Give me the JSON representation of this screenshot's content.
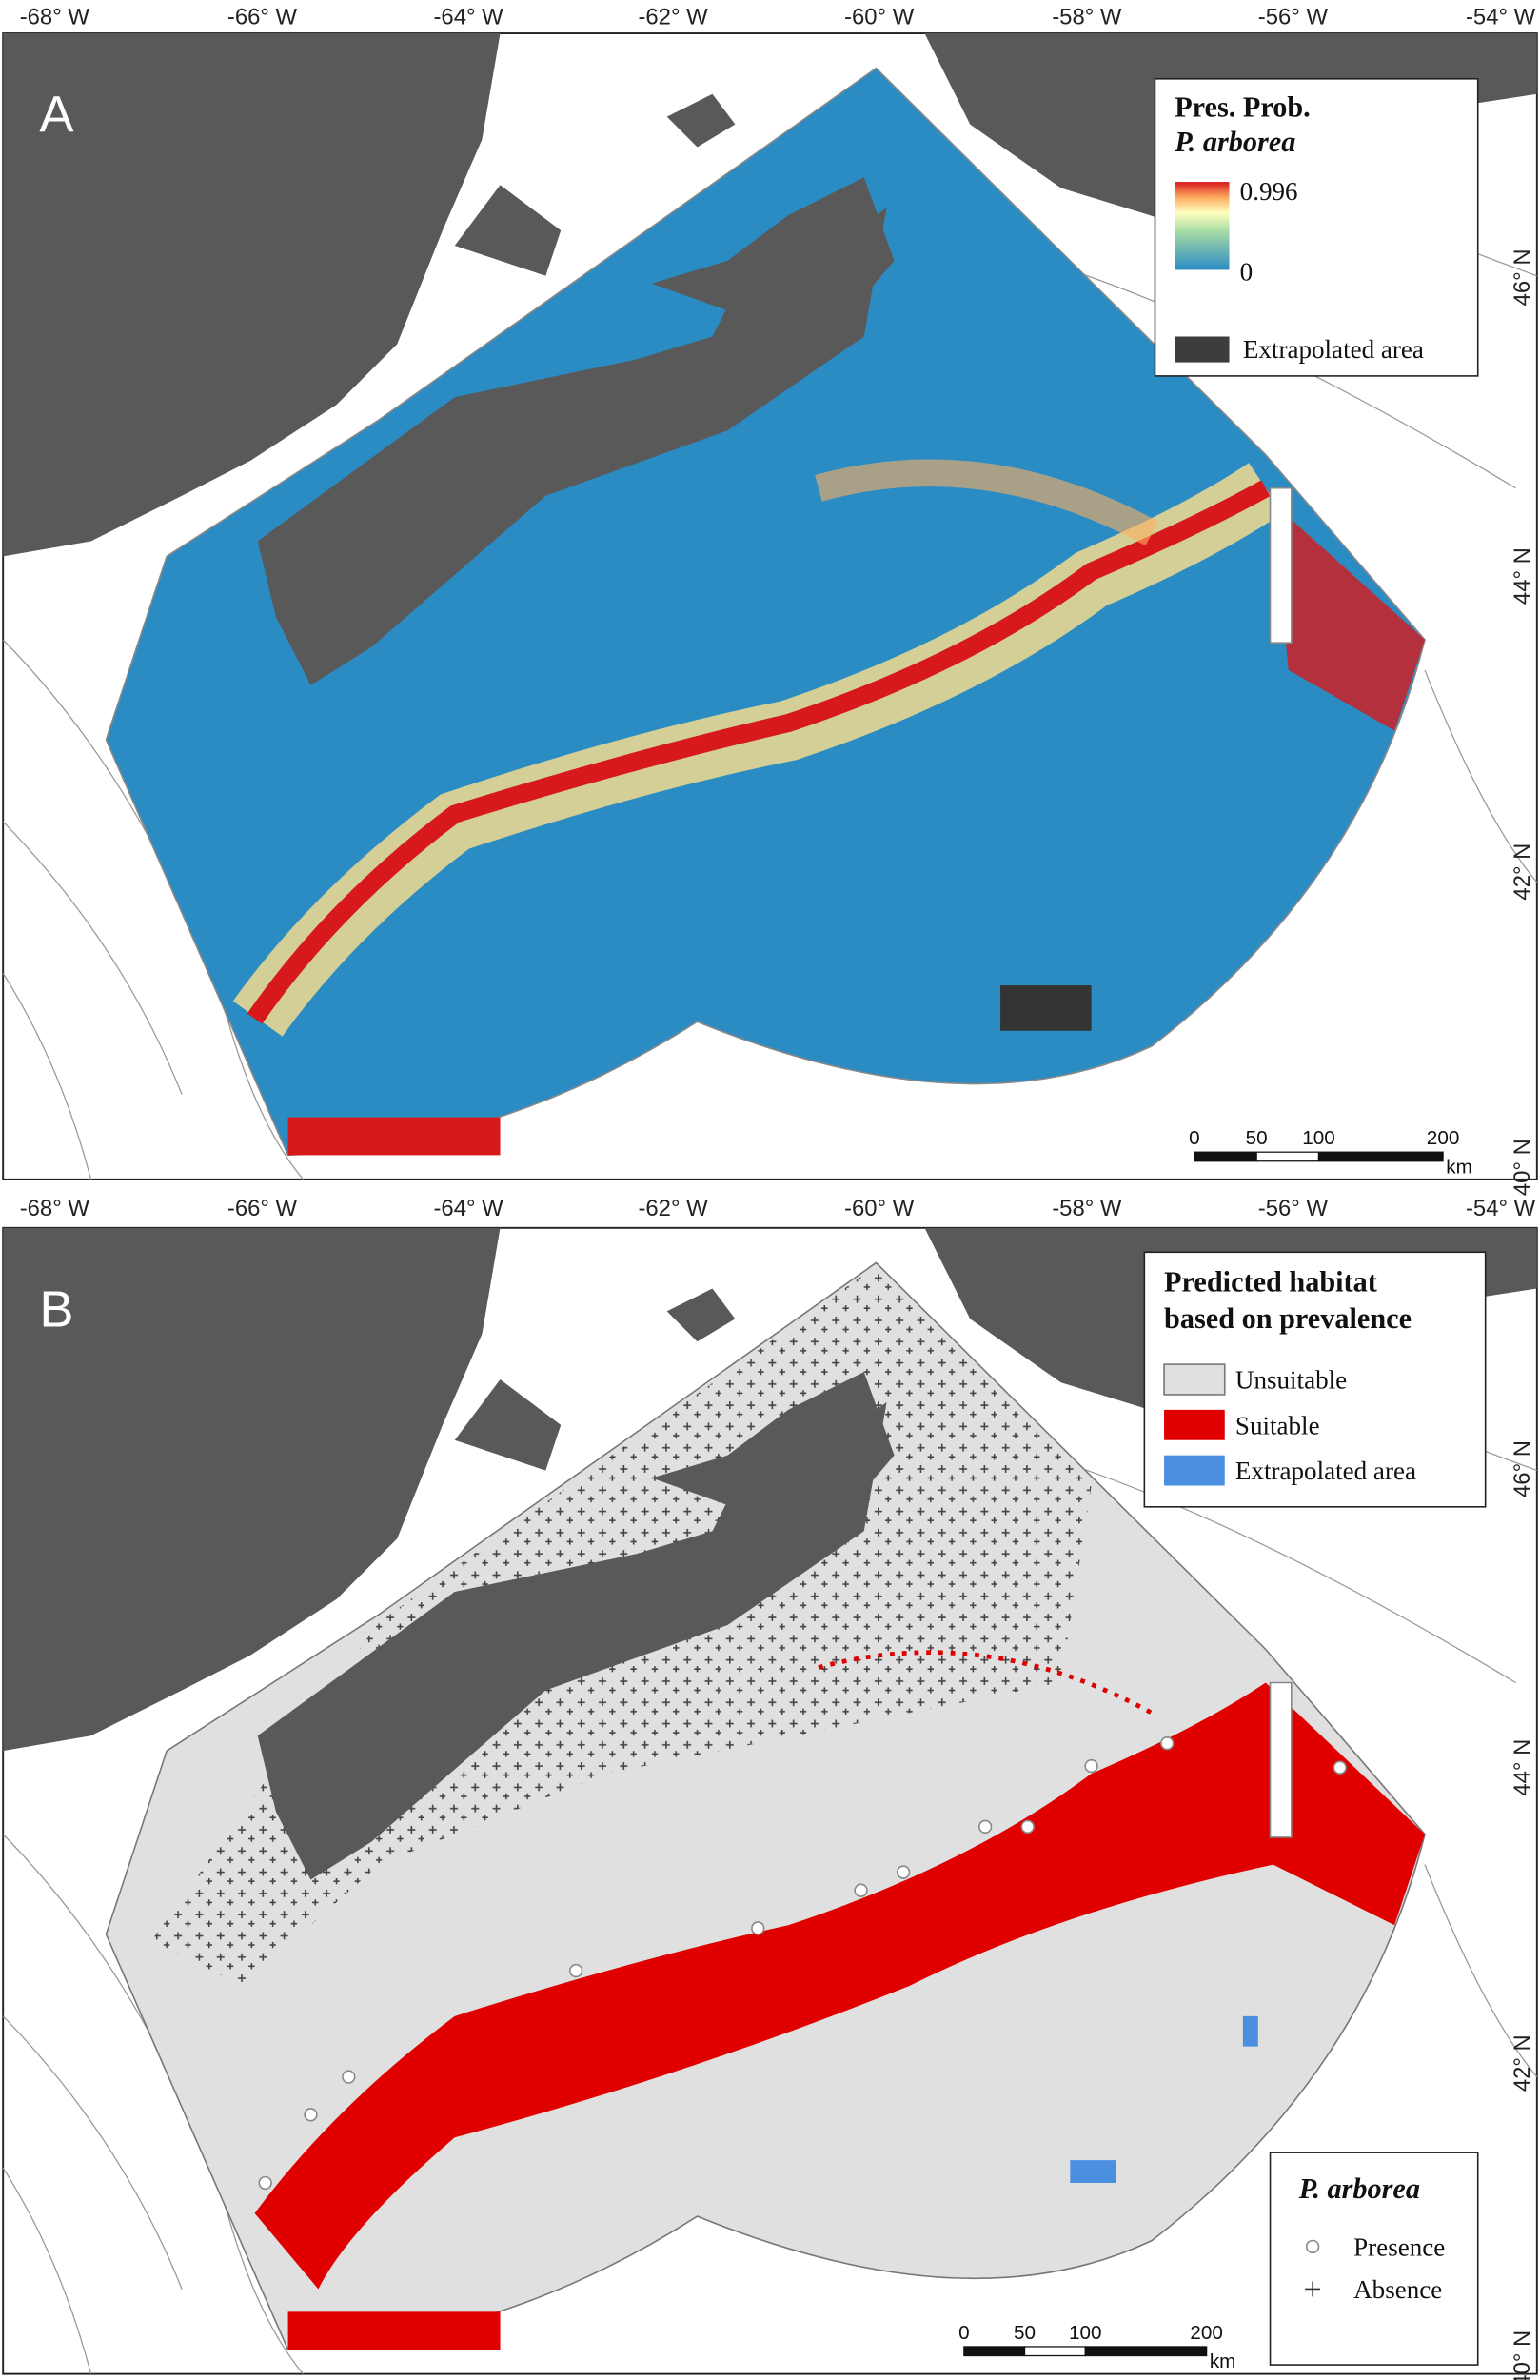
{
  "panels": [
    {
      "label": "A",
      "x_ticks": [
        "-68° W",
        "-66° W",
        "-64° W",
        "-62° W",
        "-60° W",
        "-58° W",
        "-56° W",
        "-54° W"
      ],
      "y_ticks": [
        "46° N",
        "44° N",
        "42° N",
        "40° N"
      ],
      "legend": {
        "title": "Pres. Prob.",
        "species": "P. arborea",
        "max_label": "0.996",
        "min_label": "0",
        "extrapolated": "Extrapolated area"
      },
      "scale_bar": {
        "ticks": [
          "0",
          "50",
          "100",
          "200"
        ],
        "unit": "km"
      }
    },
    {
      "label": "B",
      "x_ticks": [
        "-68° W",
        "-66° W",
        "-64° W",
        "-62° W",
        "-60° W",
        "-58° W",
        "-56° W",
        "-54° W"
      ],
      "y_ticks": [
        "46° N",
        "44° N",
        "42° N",
        "40° N"
      ],
      "legend": {
        "title_lines": [
          "Predicted habitat",
          "based on prevalence"
        ],
        "items": [
          "Unsuitable",
          "Suitable",
          "Extrapolated area"
        ]
      },
      "species_legend": {
        "title": "P. arborea",
        "items": [
          "Presence",
          "Absence"
        ]
      },
      "scale_bar": {
        "ticks": [
          "0",
          "50",
          "100",
          "200"
        ],
        "unit": "km"
      }
    }
  ]
}
